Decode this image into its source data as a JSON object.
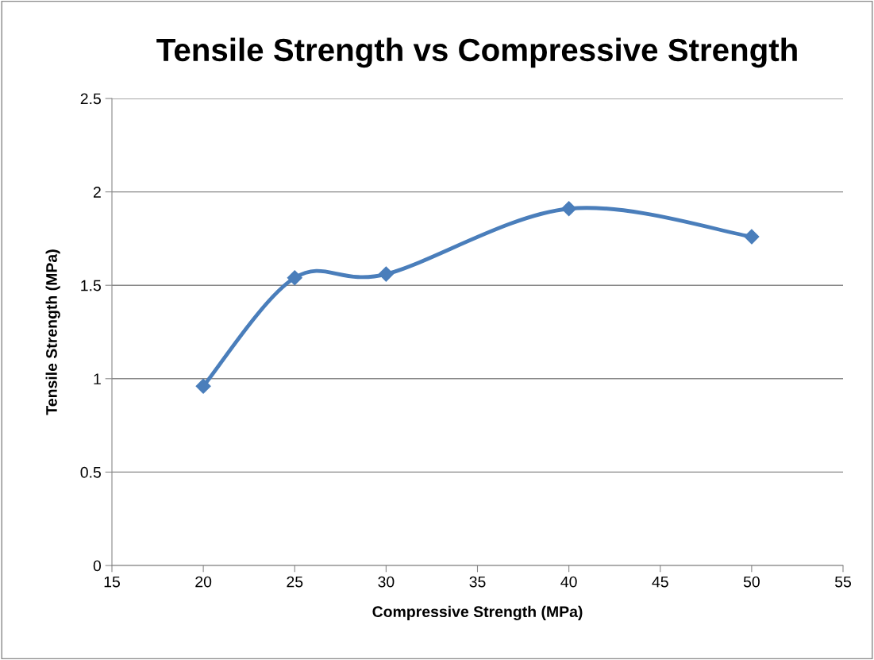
{
  "chart_data": {
    "type": "line",
    "title": "Tensile Strength vs Compressive Strength",
    "xlabel": "Compressive Strength (MPa)",
    "ylabel": "Tensile Strength (MPa)",
    "x": [
      20,
      25,
      30,
      40,
      50
    ],
    "series": [
      {
        "color": "#4a7ebb",
        "values": [
          0.96,
          1.54,
          1.56,
          1.91,
          1.76
        ]
      }
    ],
    "xlim": [
      15,
      55
    ],
    "xticks": [
      15,
      20,
      25,
      30,
      35,
      40,
      45,
      50,
      55
    ],
    "ylim": [
      0,
      2.5
    ],
    "yticks": [
      0,
      0.5,
      1,
      1.5,
      2,
      2.5
    ],
    "grid": "y",
    "legend": false,
    "marker": "diamond",
    "line_style": "solid"
  }
}
